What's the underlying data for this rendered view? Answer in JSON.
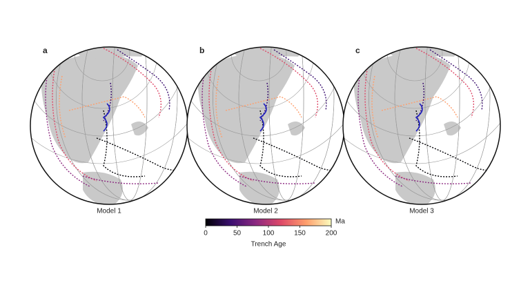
{
  "panels": [
    {
      "letter": "a",
      "title": "Model 1"
    },
    {
      "letter": "b",
      "title": "Model 2"
    },
    {
      "letter": "c",
      "title": "Model 3"
    }
  ],
  "colorbar": {
    "label": "Trench Age",
    "unit": "Ma",
    "lim": [
      0,
      200
    ],
    "ticks": [
      0,
      50,
      100,
      150,
      200
    ],
    "colors": [
      "#000004",
      "#3b0f70",
      "#8c2981",
      "#de4968",
      "#fe9f6d",
      "#fcfdbf"
    ]
  }
}
